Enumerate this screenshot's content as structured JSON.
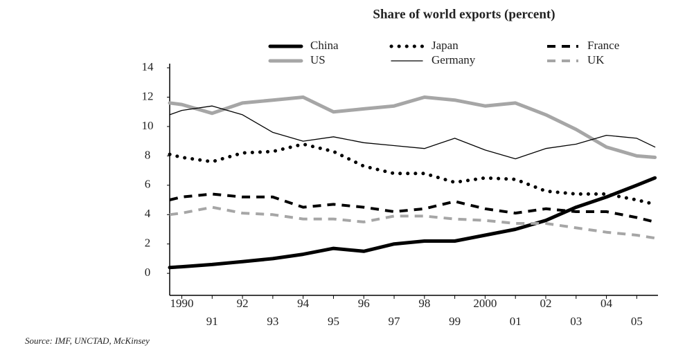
{
  "chart_data": {
    "type": "line",
    "title": "Share of world exports (percent)",
    "source": "Source: IMF, UNCTAD, McKinsey",
    "x": [
      1989.6,
      1990,
      1991,
      1992,
      1993,
      1994,
      1995,
      1996,
      1997,
      1998,
      1999,
      2000,
      2001,
      2002,
      2003,
      2004,
      2005,
      2005.6
    ],
    "series": [
      {
        "name": "China",
        "color": "#000000",
        "style": "solid-thick",
        "values": [
          0.4,
          0.45,
          0.6,
          0.8,
          1.0,
          1.3,
          1.7,
          1.5,
          2.0,
          2.2,
          2.2,
          2.6,
          3.0,
          3.6,
          4.5,
          5.2,
          6.0,
          6.5
        ]
      },
      {
        "name": "Japan",
        "color": "#000000",
        "style": "dotted",
        "values": [
          8.1,
          7.9,
          7.6,
          8.2,
          8.3,
          8.8,
          8.3,
          7.3,
          6.8,
          6.8,
          6.2,
          6.5,
          6.4,
          5.6,
          5.4,
          5.4,
          5.0,
          4.7
        ]
      },
      {
        "name": "France",
        "color": "#000000",
        "style": "dashed",
        "values": [
          5.0,
          5.2,
          5.4,
          5.2,
          5.2,
          4.5,
          4.7,
          4.5,
          4.2,
          4.4,
          4.9,
          4.4,
          4.1,
          4.4,
          4.2,
          4.2,
          3.8,
          3.5
        ]
      },
      {
        "name": "US",
        "color": "#a6a6a6",
        "style": "solid-thick",
        "values": [
          11.6,
          11.5,
          10.9,
          11.6,
          11.8,
          12.0,
          11.0,
          11.2,
          11.4,
          12.0,
          11.8,
          11.4,
          11.6,
          10.8,
          9.8,
          8.6,
          8.0,
          7.9
        ]
      },
      {
        "name": "Germany",
        "color": "#000000",
        "style": "solid-thin",
        "values": [
          10.8,
          11.1,
          11.4,
          10.8,
          9.6,
          9.0,
          9.3,
          8.9,
          8.7,
          8.5,
          9.2,
          8.4,
          7.8,
          8.5,
          8.8,
          9.4,
          9.2,
          8.6
        ]
      },
      {
        "name": "UK",
        "color": "#a6a6a6",
        "style": "dashed",
        "values": [
          4.0,
          4.1,
          4.5,
          4.1,
          4.0,
          3.7,
          3.7,
          3.5,
          3.9,
          3.9,
          3.7,
          3.6,
          3.4,
          3.4,
          3.1,
          2.8,
          2.6,
          2.4
        ]
      }
    ],
    "xlim": [
      1989.6,
      2005.7
    ],
    "xticks": [
      {
        "value": 1990,
        "label": "1990"
      },
      {
        "value": 1991,
        "label": "91"
      },
      {
        "value": 1992,
        "label": "92"
      },
      {
        "value": 1993,
        "label": "93"
      },
      {
        "value": 1994,
        "label": "94"
      },
      {
        "value": 1995,
        "label": "95"
      },
      {
        "value": 1996,
        "label": "96"
      },
      {
        "value": 1997,
        "label": "97"
      },
      {
        "value": 1998,
        "label": "98"
      },
      {
        "value": 1999,
        "label": "99"
      },
      {
        "value": 2000,
        "label": "2000"
      },
      {
        "value": 2001,
        "label": "01"
      },
      {
        "value": 2002,
        "label": "02"
      },
      {
        "value": 2003,
        "label": "03"
      },
      {
        "value": 2004,
        "label": "04"
      },
      {
        "value": 2005,
        "label": "05"
      }
    ],
    "ylim": [
      -1.5,
      14
    ],
    "yticks": [
      0,
      2,
      4,
      6,
      8,
      10,
      12,
      14
    ],
    "grid": false
  }
}
